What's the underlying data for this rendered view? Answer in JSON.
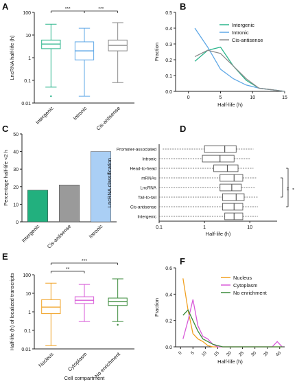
{
  "colors": {
    "intergenic": "#2bb58c",
    "intronic": "#5fa8e6",
    "cis_antisense": "#8a8a8a",
    "nucleus": "#f0a020",
    "cytoplasm": "#d85ad8",
    "no_enrichment": "#3a8a3a",
    "box_gray": "#555555",
    "bar_intronic": "#aacff5",
    "bar_intergenic": "#22b07e",
    "bar_cis": "#9a9a9a"
  },
  "chart_data": [
    {
      "panel": "A",
      "type": "box",
      "ylabel": "LncRNA half-life (h)",
      "yscale": "log",
      "ylim": [
        0.01,
        100
      ],
      "yticks": [
        "0.01",
        "0.1",
        "1",
        "10",
        "100"
      ],
      "categories": [
        "Intergenic",
        "Intronic",
        "Cis-antisense"
      ],
      "boxes": [
        {
          "min": 0.05,
          "q1": 2.5,
          "median": 4.0,
          "q3": 6.0,
          "max": 30
        },
        {
          "min": 0.02,
          "q1": 0.8,
          "median": 2.0,
          "q3": 5.0,
          "max": 20
        },
        {
          "min": 0.08,
          "q1": 2.0,
          "median": 3.5,
          "q3": 6.0,
          "max": 35
        }
      ],
      "outliers": [
        {
          "box": 0,
          "value": 0.02
        }
      ],
      "significance": [
        {
          "from": 0,
          "to": 1,
          "label": "***"
        },
        {
          "from": 1,
          "to": 2,
          "label": "***"
        }
      ]
    },
    {
      "panel": "B",
      "type": "line",
      "xlabel": "Half-life (h)",
      "ylabel": "Fraction",
      "xlim": [
        -2,
        15
      ],
      "ylim": [
        0,
        0.5
      ],
      "xticks": [
        "0",
        "5",
        "10",
        "15"
      ],
      "yticks": [
        "0.0",
        "0.1",
        "0.2",
        "0.3",
        "0.4",
        "0.5"
      ],
      "legend": "top-right",
      "series": [
        {
          "name": "Intergenic",
          "x": [
            1,
            3,
            5,
            7,
            9,
            11,
            13,
            15
          ],
          "values": [
            0.19,
            0.26,
            0.28,
            0.16,
            0.07,
            0.02,
            0.01,
            0.0
          ]
        },
        {
          "name": "Intronic",
          "x": [
            1,
            3,
            5,
            7,
            9,
            11,
            13,
            15
          ],
          "values": [
            0.4,
            0.28,
            0.14,
            0.08,
            0.04,
            0.02,
            0.01,
            0.0
          ]
        },
        {
          "name": "Cis-antisense",
          "x": [
            1,
            3,
            5,
            7,
            9,
            11,
            13,
            15
          ],
          "values": [
            0.22,
            0.26,
            0.24,
            0.16,
            0.08,
            0.02,
            0.01,
            0.0
          ]
        }
      ]
    },
    {
      "panel": "C",
      "type": "bar",
      "ylabel": "Percentage half-life <2 h",
      "ylim": [
        0,
        50
      ],
      "yticks": [
        "0",
        "10",
        "20",
        "30",
        "40",
        "50"
      ],
      "categories": [
        "Intergenic",
        "Cis-antisense",
        "Intronic"
      ],
      "values": [
        18,
        21,
        40
      ]
    },
    {
      "panel": "D",
      "type": "box",
      "orientation": "horizontal",
      "xlabel": "Half-life (h)",
      "ylabel": "LncRNA classification",
      "xscale": "log",
      "xlim": [
        0.1,
        40
      ],
      "xticks": [
        "0.1",
        "1",
        "10"
      ],
      "categories": [
        "Promoter-associated",
        "Intronic",
        "Head-to-head",
        "mRNAs",
        "LncRNA",
        "Tail-to-tail",
        "Cis-antisense",
        "Intergenic"
      ],
      "boxes": [
        {
          "min": 0.12,
          "q1": 1.0,
          "median": 2.8,
          "q3": 5.0,
          "max": 12
        },
        {
          "min": 0.1,
          "q1": 0.9,
          "median": 2.2,
          "q3": 4.5,
          "max": 10
        },
        {
          "min": 0.1,
          "q1": 1.6,
          "median": 3.2,
          "q3": 5.5,
          "max": 12
        },
        {
          "min": 0.1,
          "q1": 2.2,
          "median": 4.5,
          "q3": 7.0,
          "max": 14
        },
        {
          "min": 0.1,
          "q1": 2.2,
          "median": 4.0,
          "q3": 6.5,
          "max": 13
        },
        {
          "min": 0.1,
          "q1": 2.5,
          "median": 5.0,
          "q3": 7.5,
          "max": 15
        },
        {
          "min": 0.1,
          "q1": 2.5,
          "median": 4.5,
          "q3": 7.0,
          "max": 15
        },
        {
          "min": 0.1,
          "q1": 2.8,
          "median": 4.5,
          "q3": 7.0,
          "max": 15
        }
      ],
      "significance": [
        {
          "label": "**"
        },
        {
          "label": "*"
        }
      ]
    },
    {
      "panel": "E",
      "type": "box",
      "xlabel": "Cell compartment",
      "ylabel": "Half-life (h) of localized transcripts",
      "yscale": "log",
      "ylim": [
        0.01,
        100
      ],
      "yticks": [
        "0.01",
        "0.1",
        "1",
        "10",
        "100"
      ],
      "categories": [
        "Nucleus",
        "Cytoplasm",
        "No enrichment"
      ],
      "boxes": [
        {
          "min": 0.015,
          "q1": 0.8,
          "median": 1.8,
          "q3": 4.5,
          "max": 35
        },
        {
          "min": 0.3,
          "q1": 2.8,
          "median": 4.2,
          "q3": 6.5,
          "max": 30
        },
        {
          "min": 0.3,
          "q1": 2.2,
          "median": 3.5,
          "q3": 5.5,
          "max": 60
        }
      ],
      "outliers": [
        {
          "box": 2,
          "value": 0.2
        }
      ],
      "significance": [
        {
          "from": 0,
          "to": 1,
          "label": "**"
        },
        {
          "from": 0,
          "to": 2,
          "label": "***"
        }
      ]
    },
    {
      "panel": "F",
      "type": "line",
      "xlabel": "Half-life (h)",
      "ylabel": "Fraction",
      "xlim": [
        -2,
        42
      ],
      "ylim": [
        0,
        0.6
      ],
      "xticks": [
        "0",
        "5",
        "10",
        "15",
        "20",
        "25",
        "30",
        "35",
        "40"
      ],
      "yticks": [
        "0.0",
        "0.2",
        "0.4",
        "0.6"
      ],
      "legend": "top-right",
      "series": [
        {
          "name": "Nucleus",
          "x": [
            1,
            3,
            5,
            7,
            9,
            11,
            13,
            15,
            17,
            19,
            21,
            23,
            25,
            27,
            29,
            31,
            33,
            35,
            37,
            39,
            41
          ],
          "values": [
            0.52,
            0.28,
            0.1,
            0.06,
            0.04,
            0.01,
            0.0,
            0.0,
            0.0,
            0.0,
            0.0,
            0.0,
            0.0,
            0.0,
            0.0,
            0.0,
            0.0,
            0.0,
            0.0,
            0.0,
            0.0
          ]
        },
        {
          "name": "Cytoplasm",
          "x": [
            1,
            3,
            5,
            7,
            9,
            11,
            13,
            15,
            17,
            19,
            21,
            23,
            25,
            27,
            29,
            31,
            33,
            35,
            37,
            39,
            41
          ],
          "values": [
            0.06,
            0.2,
            0.36,
            0.16,
            0.08,
            0.06,
            0.02,
            0.0,
            0.0,
            0.0,
            0.0,
            0.0,
            0.0,
            0.0,
            0.0,
            0.0,
            0.0,
            0.0,
            0.0,
            0.04,
            0.0
          ]
        },
        {
          "name": "No enrichment",
          "x": [
            1,
            3,
            5,
            7,
            9,
            11,
            13,
            15,
            17,
            19,
            21,
            23,
            25,
            27,
            29,
            31,
            33,
            35,
            37,
            39,
            41
          ],
          "values": [
            0.24,
            0.28,
            0.2,
            0.12,
            0.06,
            0.04,
            0.02,
            0.01,
            0.0,
            0.0,
            0.0,
            0.0,
            0.0,
            0.0,
            0.0,
            0.0,
            0.0,
            0.0,
            0.0,
            0.0,
            0.0
          ]
        }
      ]
    }
  ]
}
